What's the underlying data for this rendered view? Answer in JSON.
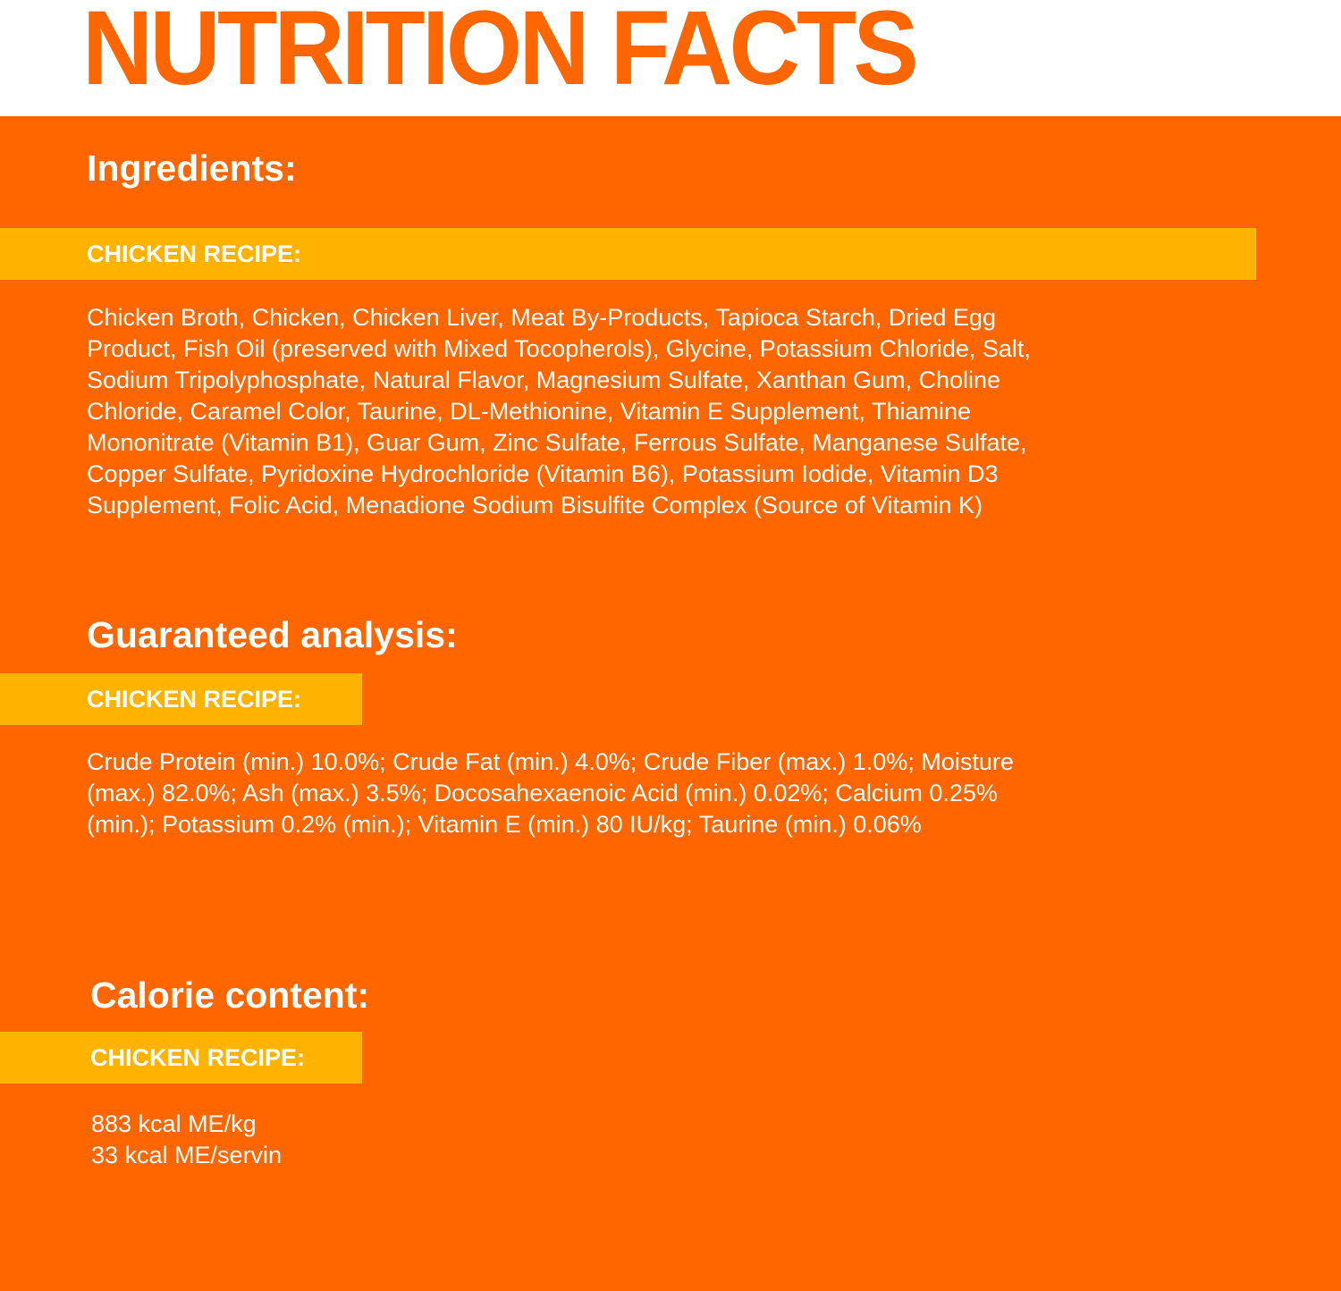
{
  "title": "NUTRITION FACTS",
  "colors": {
    "primary_orange": "#FF6600",
    "band_yellow": "#FDB300",
    "text": "#FFFFFF"
  },
  "ingredients": {
    "heading": "Ingredients:",
    "band_label": "CHICKEN RECIPE:",
    "lines": [
      "Chicken Broth, Chicken, Chicken Liver, Meat By-Products, Tapioca Starch, Dried Egg",
      "Product, Fish Oil (preserved with Mixed Tocopherols), Glycine, Potassium Chloride, Salt,",
      "Sodium Tripolyphosphate, Natural Flavor, Magnesium Sulfate, Xanthan Gum, Choline",
      "Chloride, Caramel Color, Taurine, DL-Methionine, Vitamin E Supplement, Thiamine",
      "Mononitrate (Vitamin B1), Guar Gum, Zinc Sulfate, Ferrous Sulfate, Manganese Sulfate,",
      "Copper Sulfate, Pyridoxine Hydrochloride (Vitamin B6), Potassium Iodide, Vitamin D3",
      "Supplement, Folic Acid, Menadione Sodium Bisulfite Complex (Source of Vitamin K)"
    ]
  },
  "analysis": {
    "heading": "Guaranteed analysis:",
    "band_label": "CHICKEN RECIPE:",
    "lines": [
      "Crude Protein (min.) 10.0%; Crude Fat (min.) 4.0%; Crude Fiber (max.) 1.0%; Moisture",
      "(max.) 82.0%; Ash (max.) 3.5%; Docosahexaenoic Acid (min.) 0.02%; Calcium 0.25%",
      "(min.); Potassium 0.2% (min.); Vitamin E (min.) 80 IU/kg; Taurine (min.) 0.06%"
    ]
  },
  "calories": {
    "heading": "Calorie content:",
    "band_label": "CHICKEN RECIPE:",
    "lines": [
      "883 kcal ME/kg",
      "33 kcal ME/servin"
    ]
  }
}
